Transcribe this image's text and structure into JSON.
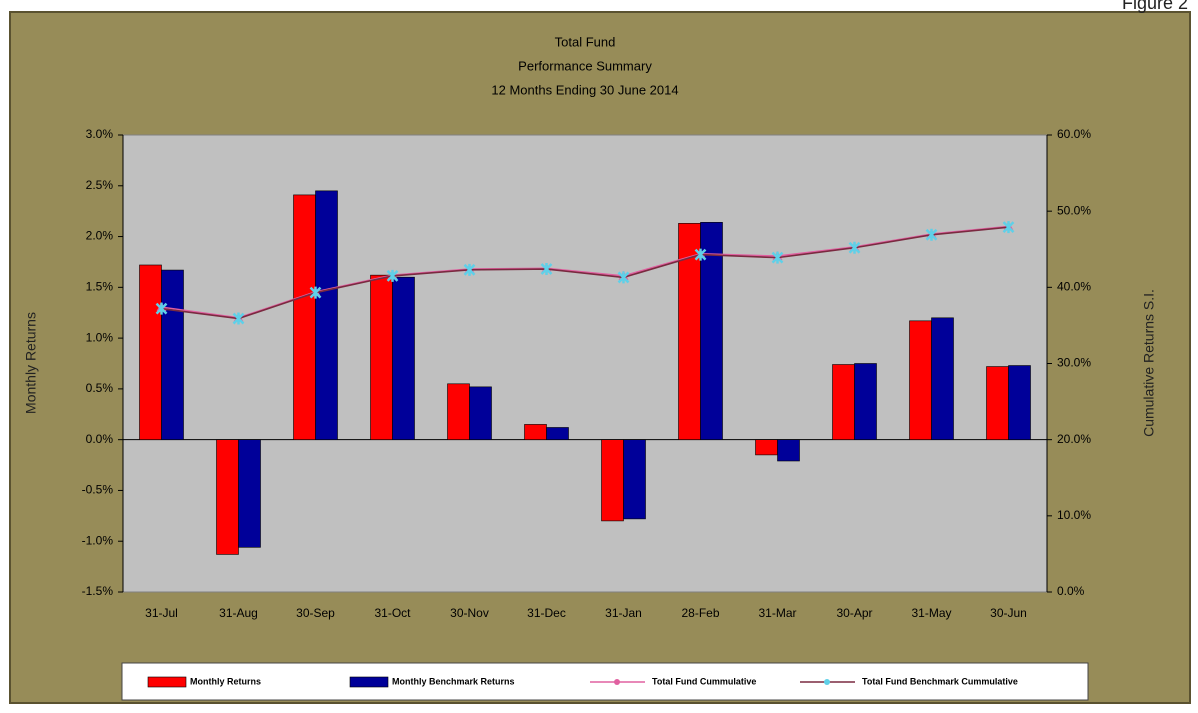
{
  "figure_label": "Figure 2",
  "chart_data": {
    "type": "bar",
    "title": "Total Fund",
    "subtitle": "Performance Summary",
    "subtitle2": "12 Months Ending 30 June 2014",
    "y_label": "Monthly Returns",
    "y2_label": "Cumulative Returns S.I.",
    "categories": [
      "31-Jul",
      "31-Aug",
      "30-Sep",
      "31-Oct",
      "30-Nov",
      "31-Dec",
      "31-Jan",
      "28-Feb",
      "31-Mar",
      "30-Apr",
      "31-May",
      "30-Jun"
    ],
    "series": [
      {
        "name": "Monthly Returns",
        "type": "bar",
        "color": "#ff0000",
        "values": [
          1.72,
          -1.13,
          2.41,
          1.62,
          0.55,
          0.15,
          -0.8,
          2.13,
          -0.15,
          0.74,
          1.17,
          0.72
        ]
      },
      {
        "name": "Monthly Benchmark Returns",
        "type": "bar",
        "color": "#000099",
        "values": [
          1.67,
          -1.06,
          2.45,
          1.6,
          0.52,
          0.12,
          -0.78,
          2.14,
          -0.21,
          0.75,
          1.2,
          0.73
        ]
      },
      {
        "name": "Total Fund Cummulative",
        "type": "line",
        "axis": "y2",
        "color": "#e060a0",
        "values": [
          37.4,
          36.0,
          39.4,
          41.6,
          42.4,
          42.5,
          41.5,
          44.4,
          44.1,
          45.3,
          47.0,
          48.0
        ]
      },
      {
        "name": "Total Fund Benchmark Cummulative",
        "type": "line",
        "axis": "y2",
        "color": "#5fd0e8",
        "values": [
          37.2,
          35.9,
          39.3,
          41.5,
          42.3,
          42.4,
          41.3,
          44.3,
          43.9,
          45.2,
          46.9,
          47.9
        ]
      }
    ],
    "ylim": [
      -1.5,
      3.0
    ],
    "yticks": [
      {
        "value": -1.5,
        "label": "-1.5%"
      },
      {
        "value": -1.0,
        "label": "-1.0%"
      },
      {
        "value": -0.5,
        "label": "-0.5%"
      },
      {
        "value": 0,
        "label": "0.0%"
      },
      {
        "value": 0.5,
        "label": "0.5%"
      },
      {
        "value": 1.0,
        "label": "1.0%"
      },
      {
        "value": 1.5,
        "label": "1.5%"
      },
      {
        "value": 2.0,
        "label": "2.0%"
      },
      {
        "value": 2.5,
        "label": "2.5%"
      },
      {
        "value": 3.0,
        "label": "3.0%"
      }
    ],
    "y2lim": [
      0,
      60
    ],
    "y2ticks": [
      {
        "value": 0,
        "label": "0.0%"
      },
      {
        "value": 10,
        "label": "10.0%"
      },
      {
        "value": 20,
        "label": "20.0%"
      },
      {
        "value": 30,
        "label": "30.0%"
      },
      {
        "value": 40,
        "label": "40.0%"
      },
      {
        "value": 50,
        "label": "50.0%"
      },
      {
        "value": 60,
        "label": "60.0%"
      }
    ],
    "grid": false,
    "legend": "bottom"
  }
}
